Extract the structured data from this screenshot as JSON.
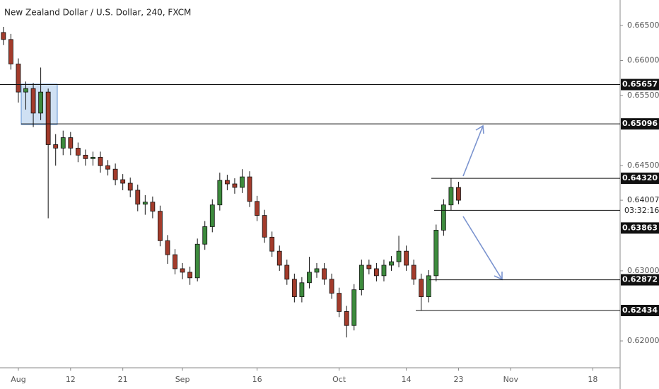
{
  "chart_data": {
    "type": "candlestick",
    "title": "New Zealand Dollar / U.S. Dollar, 240, FXCM",
    "up_color": "#3d8b3d",
    "down_color": "#a33b2b",
    "x": [
      1,
      2,
      3,
      4,
      5,
      6,
      7,
      8,
      9,
      10,
      11,
      12,
      13,
      14,
      15,
      16,
      17,
      18,
      19,
      20,
      21,
      22,
      23,
      24,
      25,
      26,
      27,
      28,
      29,
      30,
      31,
      32,
      33,
      34,
      35,
      36,
      37,
      38,
      39,
      40,
      41,
      42,
      43,
      44,
      45,
      46,
      47,
      48,
      49,
      50,
      51,
      52,
      53,
      54,
      55,
      56,
      57,
      58,
      59,
      60,
      61,
      62
    ],
    "open": [
      0.664,
      0.663,
      0.6595,
      0.6555,
      0.656,
      0.6525,
      0.6555,
      0.648,
      0.6475,
      0.649,
      0.6475,
      0.6465,
      0.646,
      0.6462,
      0.645,
      0.6445,
      0.643,
      0.6425,
      0.6415,
      0.6395,
      0.6398,
      0.6385,
      0.6343,
      0.6323,
      0.6303,
      0.6298,
      0.629,
      0.6338,
      0.6363,
      0.6394,
      0.6429,
      0.6424,
      0.6419,
      0.6434,
      0.6399,
      0.6379,
      0.6348,
      0.6328,
      0.6308,
      0.6288,
      0.6263,
      0.6283,
      0.6298,
      0.6303,
      0.6288,
      0.6268,
      0.6242,
      0.6222,
      0.6273,
      0.6308,
      0.6303,
      0.6293,
      0.6308,
      0.6313,
      0.6328,
      0.6308,
      0.6288,
      0.6263,
      0.6293,
      0.6358,
      0.6394,
      0.6419
    ],
    "high": [
      0.6648,
      0.6638,
      0.6603,
      0.657,
      0.6568,
      0.659,
      0.656,
      0.6495,
      0.65,
      0.6498,
      0.6483,
      0.6473,
      0.647,
      0.647,
      0.6458,
      0.6453,
      0.6438,
      0.6433,
      0.6423,
      0.6408,
      0.6406,
      0.6393,
      0.6351,
      0.6331,
      0.6311,
      0.6306,
      0.6346,
      0.6371,
      0.6402,
      0.644,
      0.6437,
      0.6432,
      0.6445,
      0.6442,
      0.6407,
      0.6387,
      0.6356,
      0.6336,
      0.6316,
      0.6296,
      0.6291,
      0.632,
      0.6311,
      0.6311,
      0.6296,
      0.6276,
      0.625,
      0.6281,
      0.6316,
      0.6316,
      0.6311,
      0.6316,
      0.6321,
      0.635,
      0.6336,
      0.6316,
      0.6296,
      0.6301,
      0.6366,
      0.6402,
      0.6432,
      0.6427
    ],
    "low": [
      0.6622,
      0.6587,
      0.654,
      0.653,
      0.6505,
      0.6515,
      0.6375,
      0.645,
      0.6465,
      0.6465,
      0.6455,
      0.645,
      0.645,
      0.644,
      0.6436,
      0.6422,
      0.6415,
      0.6405,
      0.6385,
      0.638,
      0.6375,
      0.6335,
      0.631,
      0.6295,
      0.6288,
      0.628,
      0.6285,
      0.633,
      0.6355,
      0.6386,
      0.6415,
      0.641,
      0.6411,
      0.6391,
      0.6371,
      0.634,
      0.632,
      0.63,
      0.628,
      0.6255,
      0.6255,
      0.6275,
      0.629,
      0.628,
      0.626,
      0.6234,
      0.6205,
      0.6215,
      0.6265,
      0.6295,
      0.6285,
      0.6285,
      0.63,
      0.6305,
      0.63,
      0.628,
      0.62434,
      0.6255,
      0.6285,
      0.635,
      0.6386,
      0.6395
    ],
    "close": [
      0.663,
      0.6595,
      0.6555,
      0.656,
      0.6525,
      0.6555,
      0.648,
      0.6475,
      0.649,
      0.6475,
      0.6465,
      0.646,
      0.6462,
      0.645,
      0.6445,
      0.643,
      0.6425,
      0.6415,
      0.6395,
      0.6398,
      0.6385,
      0.6343,
      0.6323,
      0.6303,
      0.6298,
      0.629,
      0.6338,
      0.6363,
      0.6394,
      0.6429,
      0.6424,
      0.6419,
      0.6434,
      0.6399,
      0.6379,
      0.6348,
      0.6328,
      0.6308,
      0.6288,
      0.6263,
      0.6283,
      0.6298,
      0.6303,
      0.6288,
      0.6268,
      0.6242,
      0.6222,
      0.6273,
      0.6308,
      0.6303,
      0.6293,
      0.6308,
      0.6313,
      0.6328,
      0.6308,
      0.6288,
      0.6263,
      0.6293,
      0.6358,
      0.6394,
      0.6419,
      0.64007
    ],
    "xlim": [
      0.54,
      83.66
    ],
    "xticks": [
      {
        "value": 3,
        "label": "Aug"
      },
      {
        "value": 10,
        "label": "12"
      },
      {
        "value": 17,
        "label": "21"
      },
      {
        "value": 25,
        "label": "Sep"
      },
      {
        "value": 35,
        "label": "16"
      },
      {
        "value": 46,
        "label": "Oct"
      },
      {
        "value": 55,
        "label": "14"
      },
      {
        "value": 62,
        "label": "23"
      },
      {
        "value": 69,
        "label": "Nov"
      },
      {
        "value": 80,
        "label": "18"
      }
    ],
    "ylim": [
      0.61617,
      0.66863
    ],
    "yticks": [
      {
        "value": 0.665,
        "label": "0.66500"
      },
      {
        "value": 0.66,
        "label": "0.66000"
      },
      {
        "value": 0.655,
        "label": "0.65500"
      },
      {
        "value": 0.645,
        "label": "0.64500"
      },
      {
        "value": 0.63,
        "label": "0.63000"
      },
      {
        "value": 0.62,
        "label": "0.62000"
      }
    ],
    "levels": [
      {
        "value": 0.65657,
        "label": "0.65657"
      },
      {
        "value": 0.65096,
        "label": "0.65096"
      },
      {
        "value": 0.6432,
        "label": "0.64320"
      },
      {
        "value": 0.63863,
        "label": "0.63863"
      },
      {
        "value": 0.62872,
        "label": "0.62872"
      },
      {
        "value": 0.62434,
        "label": "0.62434"
      }
    ],
    "last_price": {
      "value": 0.64007,
      "label": "0.64007"
    },
    "countdown": "03:32:16"
  }
}
